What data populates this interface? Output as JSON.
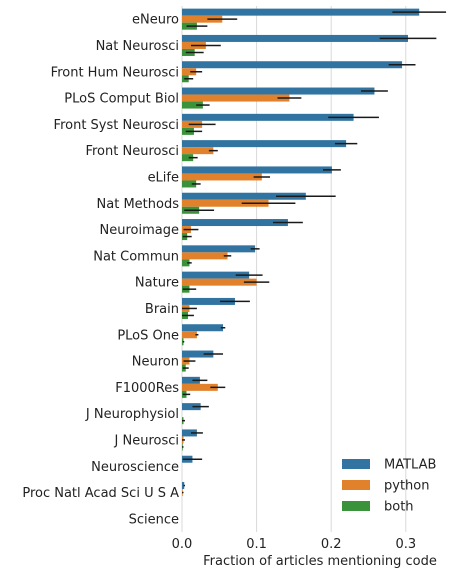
{
  "chart_data": {
    "type": "bar",
    "orientation": "horizontal",
    "xlabel": "Fraction of articles mentioning code",
    "xlim": [
      0,
      0.37
    ],
    "xticks": [
      "0.0",
      "0.1",
      "0.2",
      "0.3"
    ],
    "xtick_values": [
      0,
      0.1,
      0.2,
      0.3
    ],
    "grid": "vertical",
    "legend": "bottom-right",
    "categories": [
      "eNeuro",
      "Nat Neurosci",
      "Front Hum Neurosci",
      "PLoS Comput Biol",
      "Front Syst Neurosci",
      "Front Neurosci",
      "eLife",
      "Nat Methods",
      "Neuroimage",
      "Nat Commun",
      "Nature",
      "Brain",
      "PLoS One",
      "Neuron",
      "F1000Res",
      "J Neurophysiol",
      "J Neurosci",
      "Neuroscience",
      "Proc Natl Acad Sci U S A",
      "Science"
    ],
    "series": [
      {
        "name": "MATLAB",
        "color": "#3274a1",
        "values": [
          0.318,
          0.303,
          0.295,
          0.258,
          0.23,
          0.22,
          0.201,
          0.166,
          0.142,
          0.098,
          0.09,
          0.071,
          0.055,
          0.042,
          0.024,
          0.025,
          0.02,
          0.014,
          0.003,
          0
        ],
        "errors": [
          0.036,
          0.038,
          0.018,
          0.018,
          0.034,
          0.015,
          0.012,
          0.04,
          0.02,
          0.006,
          0.018,
          0.02,
          0.003,
          0.013,
          0.01,
          0.011,
          0.008,
          0.013,
          0.001,
          0
        ]
      },
      {
        "name": "python",
        "color": "#e1812c",
        "values": [
          0.054,
          0.032,
          0.019,
          0.144,
          0.027,
          0.042,
          0.107,
          0.116,
          0.012,
          0.061,
          0.1,
          0.01,
          0.02,
          0.01,
          0.048,
          0,
          0.002,
          0,
          0.001,
          0
        ],
        "errors": [
          0.02,
          0.02,
          0.008,
          0.016,
          0.018,
          0.006,
          0.011,
          0.036,
          0.01,
          0.005,
          0.017,
          0.01,
          0.002,
          0.008,
          0.01,
          0,
          0.002,
          0,
          0.001,
          0
        ],
        "stroke_unused": ""
      },
      {
        "name": "both",
        "color": "#3a923a",
        "values": [
          0.02,
          0.017,
          0.009,
          0.028,
          0.016,
          0.015,
          0.019,
          0.023,
          0.007,
          0.01,
          0.01,
          0.008,
          0.002,
          0.005,
          0.006,
          0.002,
          0.001,
          0,
          0,
          0
        ],
        "errors": [
          0.014,
          0.012,
          0.006,
          0.009,
          0.011,
          0.006,
          0.006,
          0.02,
          0.006,
          0.003,
          0.009,
          0.008,
          0.001,
          0.004,
          0.005,
          0.002,
          0.001,
          0,
          0,
          0
        ]
      }
    ]
  }
}
